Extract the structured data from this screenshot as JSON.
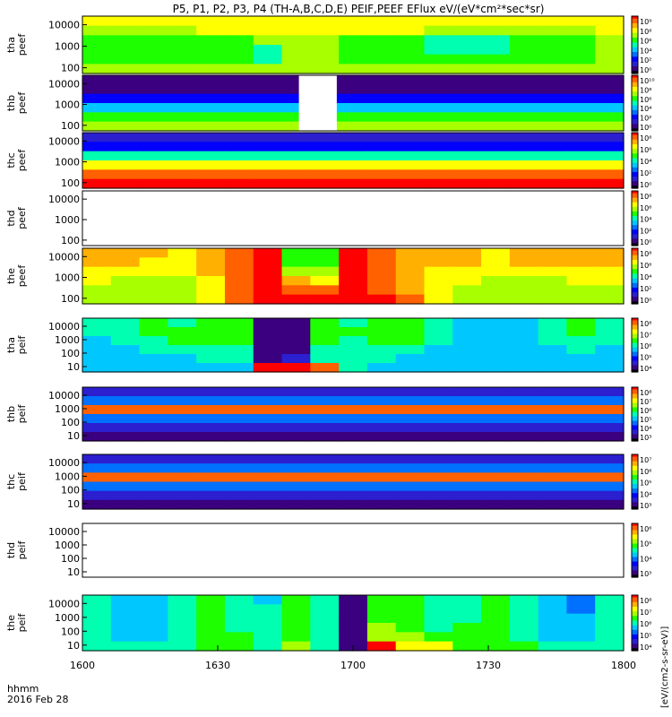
{
  "title": "P5, P1, P2, P3, P4 (TH-A,B,C,D,E) PEIF,PEEF EFlux eV/(eV*cm²*sec*sr)",
  "time_axis": {
    "label_line1": "hhmm",
    "label_line2": "2016 Feb 28",
    "ticks": [
      "1600",
      "1630",
      "1700",
      "1730",
      "1800"
    ]
  },
  "colorbar_label": "[eV/(cm2-s-sr-eV)]",
  "chart_data": [
    {
      "type": "heatmap",
      "label": [
        "tha",
        "peef"
      ],
      "ytick_labels": [
        "10000",
        "1000",
        "100"
      ],
      "colorbar_ticks": [
        "10⁹",
        "10⁸",
        "10⁶",
        "10⁴",
        "10²",
        "10⁰"
      ],
      "cells": [
        [
          9,
          9,
          9,
          9,
          9,
          9,
          9,
          9,
          9,
          9,
          9,
          9,
          9,
          9,
          9,
          9,
          9,
          9,
          9
        ],
        [
          8,
          8,
          8,
          8,
          9,
          9,
          9,
          9,
          9,
          9,
          9,
          9,
          8,
          8,
          8,
          8,
          8,
          8,
          9
        ],
        [
          7,
          7,
          7,
          7,
          7,
          7,
          8,
          8,
          8,
          7,
          7,
          7,
          6,
          6,
          6,
          7,
          7,
          7,
          8
        ],
        [
          7,
          7,
          7,
          7,
          7,
          7,
          6,
          8,
          8,
          7,
          7,
          7,
          6,
          6,
          6,
          7,
          7,
          7,
          8
        ],
        [
          7,
          7,
          7,
          7,
          7,
          7,
          6,
          8,
          8,
          7,
          7,
          7,
          7,
          7,
          7,
          7,
          7,
          7,
          8
        ],
        [
          8,
          8,
          8,
          8,
          8,
          8,
          8,
          8,
          8,
          8,
          8,
          8,
          8,
          8,
          8,
          8,
          8,
          8,
          8
        ]
      ]
    },
    {
      "type": "heatmap",
      "label": [
        "thb",
        "peef"
      ],
      "ytick_labels": [
        "10000",
        "1000",
        "100"
      ],
      "colorbar_ticks": [
        "10¹⁰",
        "10⁸",
        "10⁶",
        "10⁴",
        "10²",
        "10⁰"
      ],
      "gap": [
        0.4,
        0.47
      ],
      "cells": [
        [
          1,
          1,
          1,
          1,
          1,
          1,
          1,
          1,
          1,
          1,
          1,
          1,
          1,
          1,
          1,
          1,
          1,
          1,
          1
        ],
        [
          1,
          1,
          1,
          1,
          1,
          1,
          1,
          1,
          1,
          1,
          1,
          1,
          1,
          1,
          1,
          1,
          1,
          1,
          1
        ],
        [
          3,
          3,
          3,
          3,
          3,
          3,
          3,
          3,
          3,
          3,
          3,
          3,
          3,
          3,
          3,
          3,
          3,
          3,
          3
        ],
        [
          5,
          5,
          5,
          5,
          5,
          5,
          5,
          5,
          5,
          5,
          5,
          5,
          5,
          5,
          5,
          5,
          5,
          5,
          5
        ],
        [
          7,
          7,
          7,
          7,
          7,
          7,
          7,
          7,
          7,
          7,
          7,
          7,
          7,
          7,
          7,
          7,
          7,
          7,
          7
        ],
        [
          8,
          8,
          8,
          8,
          8,
          8,
          8,
          8,
          8,
          8,
          8,
          8,
          8,
          8,
          8,
          8,
          8,
          8,
          8
        ]
      ]
    },
    {
      "type": "heatmap",
      "label": [
        "thc",
        "peef"
      ],
      "ytick_labels": [
        "10000",
        "1000",
        "100"
      ],
      "colorbar_ticks": [
        "10⁸",
        "10⁶",
        "10⁴",
        "10²",
        "10⁰"
      ],
      "cells": [
        [
          2,
          2,
          2,
          2,
          2,
          2,
          2,
          2,
          2,
          2,
          2,
          2,
          2,
          2,
          2,
          2,
          2,
          2,
          2
        ],
        [
          3,
          3,
          3,
          3,
          3,
          3,
          3,
          3,
          3,
          3,
          3,
          3,
          3,
          3,
          3,
          3,
          3,
          3,
          3
        ],
        [
          6,
          6,
          6,
          6,
          6,
          6,
          6,
          6,
          6,
          6,
          6,
          6,
          6,
          6,
          6,
          6,
          6,
          6,
          6
        ],
        [
          9,
          9,
          9,
          9,
          9,
          9,
          9,
          9,
          9,
          9,
          9,
          9,
          9,
          9,
          9,
          9,
          9,
          9,
          9
        ],
        [
          11,
          11,
          11,
          11,
          11,
          11,
          11,
          11,
          11,
          11,
          11,
          11,
          11,
          11,
          11,
          11,
          11,
          11,
          11
        ],
        [
          12,
          12,
          12,
          12,
          12,
          12,
          12,
          12,
          12,
          12,
          12,
          12,
          12,
          12,
          12,
          12,
          12,
          12,
          12
        ]
      ]
    },
    {
      "type": "heatmap",
      "label": [
        "thd",
        "peef"
      ],
      "ytick_labels": [
        "10000",
        "1000",
        "100"
      ],
      "colorbar_ticks": [
        "10⁸",
        "10⁶",
        "10⁴",
        "10²",
        "10⁰"
      ],
      "cells": []
    },
    {
      "type": "heatmap",
      "label": [
        "the",
        "peef"
      ],
      "ytick_labels": [
        "10000",
        "1000",
        "100"
      ],
      "colorbar_ticks": [
        "10⁸",
        "10⁶",
        "10⁴",
        "10²",
        "10⁰"
      ],
      "cells": [
        [
          10,
          10,
          10,
          9,
          10,
          11,
          12,
          7,
          7,
          12,
          11,
          10,
          10,
          10,
          9,
          10,
          10,
          10,
          10
        ],
        [
          10,
          10,
          9,
          9,
          10,
          11,
          12,
          7,
          7,
          12,
          11,
          10,
          10,
          10,
          9,
          10,
          10,
          10,
          10
        ],
        [
          9,
          9,
          9,
          9,
          10,
          11,
          12,
          8,
          8,
          12,
          11,
          10,
          9,
          9,
          9,
          9,
          9,
          9,
          9
        ],
        [
          9,
          8,
          8,
          8,
          9,
          11,
          12,
          10,
          9,
          12,
          11,
          10,
          9,
          9,
          8,
          8,
          8,
          9,
          9
        ],
        [
          8,
          8,
          8,
          8,
          9,
          11,
          12,
          11,
          11,
          12,
          11,
          10,
          9,
          8,
          8,
          8,
          8,
          8,
          8
        ],
        [
          8,
          8,
          8,
          8,
          9,
          11,
          12,
          12,
          12,
          12,
          12,
          11,
          9,
          8,
          8,
          8,
          8,
          8,
          8
        ]
      ]
    },
    {
      "type": "heatmap",
      "label": [
        "tha",
        "peif"
      ],
      "ytick_labels": [
        "10000",
        "1000",
        "100",
        "10"
      ],
      "colorbar_ticks": [
        "10⁸",
        "10⁷",
        "10⁶",
        "10⁵",
        "10⁴"
      ],
      "cells": [
        [
          6,
          6,
          7,
          6,
          7,
          7,
          1,
          1,
          7,
          6,
          7,
          7,
          6,
          5,
          5,
          5,
          6,
          7,
          6
        ],
        [
          6,
          6,
          7,
          7,
          7,
          7,
          1,
          1,
          7,
          7,
          7,
          7,
          6,
          5,
          5,
          5,
          6,
          7,
          6
        ],
        [
          5,
          6,
          6,
          7,
          7,
          7,
          1,
          1,
          7,
          6,
          7,
          7,
          6,
          5,
          5,
          5,
          6,
          6,
          6
        ],
        [
          5,
          5,
          6,
          6,
          6,
          6,
          1,
          1,
          6,
          6,
          6,
          6,
          5,
          5,
          5,
          5,
          5,
          6,
          5
        ],
        [
          5,
          5,
          5,
          5,
          6,
          6,
          1,
          2,
          6,
          6,
          6,
          5,
          5,
          5,
          5,
          5,
          5,
          5,
          5
        ],
        [
          5,
          5,
          5,
          5,
          5,
          5,
          12,
          12,
          11,
          6,
          5,
          5,
          5,
          5,
          5,
          5,
          5,
          5,
          5
        ]
      ]
    },
    {
      "type": "heatmap",
      "label": [
        "thb",
        "peif"
      ],
      "ytick_labels": [
        "10000",
        "1000",
        "100",
        "10"
      ],
      "colorbar_ticks": [
        "10⁸",
        "10⁷",
        "10⁶",
        "10⁵",
        "10⁴",
        "10³"
      ],
      "cells": [
        [
          2,
          2,
          2,
          2,
          2,
          2,
          2,
          2,
          2,
          2,
          2,
          2,
          2,
          2,
          2,
          2,
          2,
          2,
          2
        ],
        [
          4,
          4,
          4,
          4,
          4,
          4,
          4,
          4,
          4,
          4,
          4,
          4,
          4,
          4,
          4,
          4,
          4,
          4,
          4
        ],
        [
          11,
          11,
          11,
          11,
          11,
          11,
          11,
          11,
          11,
          11,
          11,
          11,
          11,
          11,
          11,
          11,
          11,
          11,
          11
        ],
        [
          4,
          4,
          4,
          4,
          4,
          4,
          4,
          4,
          4,
          4,
          4,
          4,
          4,
          4,
          4,
          4,
          4,
          4,
          4
        ],
        [
          2,
          2,
          2,
          2,
          2,
          2,
          2,
          2,
          2,
          2,
          2,
          2,
          2,
          2,
          2,
          2,
          2,
          2,
          2
        ],
        [
          1,
          1,
          1,
          1,
          1,
          1,
          1,
          1,
          1,
          1,
          1,
          1,
          1,
          1,
          1,
          1,
          1,
          1,
          1
        ]
      ]
    },
    {
      "type": "heatmap",
      "label": [
        "thc",
        "peif"
      ],
      "ytick_labels": [
        "10000",
        "1000",
        "100",
        "10"
      ],
      "colorbar_ticks": [
        "10⁷",
        "10⁶",
        "10⁵",
        "10⁴",
        "10³"
      ],
      "cells": [
        [
          2,
          2,
          2,
          2,
          2,
          2,
          2,
          2,
          2,
          2,
          2,
          2,
          2,
          2,
          2,
          2,
          2,
          2,
          2
        ],
        [
          4,
          4,
          4,
          4,
          4,
          4,
          4,
          4,
          4,
          4,
          4,
          4,
          4,
          4,
          4,
          4,
          4,
          4,
          4
        ],
        [
          11,
          11,
          11,
          11,
          11,
          11,
          11,
          11,
          11,
          11,
          11,
          11,
          11,
          11,
          11,
          11,
          11,
          11,
          11
        ],
        [
          4,
          4,
          4,
          4,
          4,
          4,
          4,
          4,
          4,
          4,
          4,
          4,
          4,
          4,
          4,
          4,
          4,
          4,
          4
        ],
        [
          2,
          2,
          2,
          2,
          2,
          2,
          2,
          2,
          2,
          2,
          2,
          2,
          2,
          2,
          2,
          2,
          2,
          2,
          2
        ],
        [
          1,
          1,
          1,
          1,
          1,
          1,
          1,
          1,
          1,
          1,
          1,
          1,
          1,
          1,
          1,
          1,
          1,
          1,
          1
        ]
      ]
    },
    {
      "type": "heatmap",
      "label": [
        "thd",
        "peif"
      ],
      "ytick_labels": [
        "10000",
        "1000",
        "100",
        "10"
      ],
      "colorbar_ticks": [
        "10⁶",
        "10⁵",
        "10⁴",
        "10³"
      ],
      "cells": []
    },
    {
      "type": "heatmap",
      "label": [
        "the",
        "peif"
      ],
      "ytick_labels": [
        "10000",
        "1000",
        "100",
        "10"
      ],
      "colorbar_ticks": [
        "10⁸",
        "10⁷",
        "10⁶",
        "10⁵",
        "10⁴"
      ],
      "cells": [
        [
          6,
          5,
          5,
          6,
          7,
          6,
          5,
          7,
          6,
          1,
          7,
          7,
          6,
          6,
          7,
          6,
          5,
          4,
          6
        ],
        [
          6,
          5,
          5,
          6,
          7,
          6,
          6,
          7,
          6,
          1,
          7,
          7,
          6,
          6,
          7,
          6,
          5,
          4,
          6
        ],
        [
          6,
          5,
          5,
          6,
          7,
          6,
          6,
          7,
          6,
          1,
          7,
          7,
          6,
          6,
          7,
          6,
          5,
          5,
          6
        ],
        [
          6,
          5,
          5,
          6,
          7,
          6,
          6,
          7,
          6,
          1,
          8,
          7,
          6,
          7,
          7,
          6,
          5,
          5,
          6
        ],
        [
          6,
          5,
          5,
          6,
          7,
          7,
          6,
          7,
          6,
          1,
          8,
          8,
          7,
          7,
          7,
          6,
          5,
          5,
          6
        ],
        [
          6,
          6,
          6,
          6,
          7,
          7,
          6,
          8,
          6,
          1,
          12,
          9,
          9,
          7,
          7,
          7,
          6,
          6,
          6
        ]
      ]
    }
  ]
}
